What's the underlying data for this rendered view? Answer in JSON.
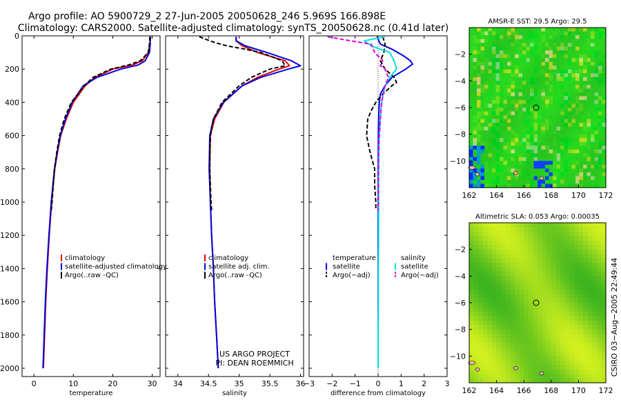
{
  "title": {
    "line1": "Argo profile: AO 5900729_2 27-Jun-2005 20050628_246 5.969S 166.898E",
    "line2": "Climatology: CARS2000. Satellite-adjusted climatology: synTS_20050628.nc (0.41d later)"
  },
  "colors": {
    "climatology": "#e00000",
    "satellite": "#0000e0",
    "argo": "#000000",
    "satellite_salinity": "#00e0e0",
    "argo_salinity": "#e000e0"
  },
  "depth_axis": {
    "ylim": [
      0,
      2050
    ],
    "ticks": [
      0,
      200,
      400,
      600,
      800,
      1000,
      1200,
      1400,
      1600,
      1800,
      2000
    ],
    "tick_labels": [
      "0",
      "200",
      "400",
      "600",
      "800",
      "1000",
      "1200",
      "1400",
      "1600",
      "1800",
      "2000"
    ]
  },
  "chart_data": [
    {
      "id": "temperature",
      "type": "line",
      "xlabel": "temperature",
      "xlim": [
        -3,
        32
      ],
      "xticks": [
        0,
        10,
        20,
        30
      ],
      "xtick_labels": [
        "0",
        "10",
        "20",
        "30"
      ],
      "legend": {
        "placement": "lower-center",
        "entries": [
          "climatology",
          "satellite-adjusted climatology",
          "Argo(..raw -QC)"
        ]
      },
      "series": [
        {
          "name": "climatology",
          "color": "climatology",
          "width": 2,
          "dash": "",
          "depth": [
            5,
            50,
            100,
            150,
            175,
            200,
            250,
            300,
            400,
            500,
            600,
            700,
            800,
            1000,
            1200,
            1400,
            1600,
            1800,
            2000
          ],
          "values": [
            29.6,
            29.4,
            29.0,
            27.5,
            25.0,
            20.0,
            15.5,
            13.0,
            10.0,
            8.2,
            6.8,
            6.0,
            5.3,
            4.5,
            3.9,
            3.4,
            3.0,
            2.7,
            2.4
          ]
        },
        {
          "name": "satellite-adjusted climatology",
          "color": "satellite",
          "width": 2,
          "dash": "",
          "depth": [
            5,
            50,
            100,
            150,
            175,
            200,
            250,
            300,
            400,
            500,
            600,
            700,
            800,
            1000,
            1200,
            1400,
            1600,
            1800,
            2000
          ],
          "values": [
            29.5,
            29.5,
            29.3,
            28.2,
            26.5,
            22.0,
            16.0,
            12.5,
            9.7,
            8.0,
            6.7,
            5.9,
            5.2,
            4.4,
            3.8,
            3.3,
            2.9,
            2.6,
            2.3
          ]
        },
        {
          "name": "Argo(..raw -QC)",
          "color": "argo",
          "width": 2,
          "dash": "6,3",
          "depth": [
            5,
            50,
            100,
            150,
            175,
            200,
            250,
            300,
            400,
            500,
            600,
            700,
            800,
            900,
            1000,
            1050
          ],
          "values": [
            29.4,
            29.3,
            29.0,
            27.0,
            24.0,
            19.5,
            15.0,
            12.8,
            9.5,
            7.7,
            6.5,
            5.8,
            5.2,
            4.9,
            4.6,
            4.4
          ]
        }
      ]
    },
    {
      "id": "salinity",
      "type": "line",
      "xlabel": "salinity",
      "xlim": [
        33.8,
        36.05
      ],
      "xticks": [
        34,
        34.5,
        35,
        35.5,
        36
      ],
      "xtick_labels": [
        "34",
        "34.5",
        "35",
        "35.5",
        "36"
      ],
      "legend": {
        "placement": "lower-center",
        "entries": [
          "climatology",
          "satellite adj. clim.",
          "Argo(..raw -QC)"
        ]
      },
      "credit": {
        "line1": "US ARGO PROJECT",
        "line2": "PI: DEAN ROEMMICH"
      },
      "series": [
        {
          "name": "climatology",
          "color": "climatology",
          "width": 2,
          "dash": "",
          "depth": [
            5,
            30,
            60,
            100,
            150,
            180,
            200,
            250,
            300,
            400,
            500,
            600,
            800,
            1000,
            1200,
            1400,
            1600,
            1800,
            2000
          ],
          "values": [
            34.95,
            34.95,
            35.05,
            35.3,
            35.75,
            35.82,
            35.65,
            35.3,
            35.05,
            34.75,
            34.6,
            34.53,
            34.52,
            34.53,
            34.55,
            34.58,
            34.6,
            34.63,
            34.66
          ]
        },
        {
          "name": "satellite adj. clim.",
          "color": "satellite",
          "width": 2,
          "dash": "",
          "depth": [
            5,
            30,
            60,
            100,
            150,
            180,
            200,
            250,
            300,
            400,
            500,
            600,
            800,
            1000,
            1200,
            1400,
            1600,
            1800,
            2000
          ],
          "values": [
            34.95,
            34.95,
            35.1,
            35.45,
            35.85,
            36.0,
            35.8,
            35.35,
            35.05,
            34.74,
            34.58,
            34.52,
            34.51,
            34.53,
            34.55,
            34.58,
            34.6,
            34.63,
            34.66
          ]
        },
        {
          "name": "Argo(..raw -QC)",
          "color": "argo",
          "width": 2,
          "dash": "6,3",
          "depth": [
            5,
            20,
            40,
            60,
            80,
            100,
            150,
            180,
            200,
            250,
            300,
            400,
            500,
            600,
            700,
            800,
            900,
            1000,
            1050
          ],
          "values": [
            34.35,
            34.45,
            34.6,
            34.8,
            35.1,
            35.35,
            35.7,
            35.75,
            35.5,
            35.2,
            35.0,
            34.72,
            34.58,
            34.53,
            34.52,
            34.52,
            34.53,
            34.54,
            34.55
          ]
        }
      ]
    },
    {
      "id": "difference",
      "type": "line",
      "xlabel": "difference from climatology",
      "xlim": [
        -3,
        3
      ],
      "xticks": [
        -3,
        -2,
        -1,
        0,
        1,
        2,
        3
      ],
      "xtick_labels": [
        "−3",
        "−2",
        "−1",
        "0",
        "1",
        "2",
        "3"
      ],
      "legend": {
        "placement": "lower-center",
        "left_title": "temperature",
        "right_title": "salinity",
        "left_entries": [
          "satellite",
          "Argo(−adj)"
        ],
        "right_entries": [
          "satellite",
          "Argo(−adj)"
        ]
      },
      "series": [
        {
          "name": "temperature satellite",
          "color": "satellite",
          "width": 2,
          "dash": "",
          "depth": [
            5,
            50,
            80,
            120,
            150,
            170,
            200,
            250,
            300,
            350,
            400,
            500,
            600,
            800,
            1000,
            1200,
            1400,
            1600,
            1800,
            2000
          ],
          "values": [
            -0.05,
            0.1,
            0.6,
            1.1,
            1.4,
            1.5,
            1.2,
            0.6,
            0.3,
            0.1,
            0.05,
            0.02,
            0.01,
            0.0,
            0.0,
            0.0,
            0.0,
            0.0,
            0.0,
            0.0
          ]
        },
        {
          "name": "temperature Argo(-adj)",
          "color": "argo",
          "width": 2,
          "dash": "6,3",
          "depth": [
            5,
            50,
            100,
            150,
            200,
            250,
            280,
            300,
            350,
            400,
            450,
            500,
            600,
            700,
            800,
            900,
            1000,
            1050
          ],
          "values": [
            0.2,
            0.3,
            0.25,
            0.1,
            0.3,
            0.7,
            0.8,
            0.6,
            0.2,
            -0.1,
            -0.3,
            -0.45,
            -0.5,
            -0.35,
            -0.15,
            -0.15,
            -0.1,
            -0.1
          ]
        },
        {
          "name": "salinity satellite",
          "color": "satellite_salinity",
          "width": 2,
          "dash": "",
          "depth": [
            5,
            30,
            60,
            100,
            150,
            200,
            250,
            300,
            400,
            500,
            600,
            800,
            1000,
            1200,
            1400,
            1600,
            1800,
            2000
          ],
          "values": [
            0.3,
            -0.6,
            -0.3,
            0.5,
            0.7,
            0.8,
            0.5,
            0.3,
            0.15,
            0.1,
            0.05,
            0.02,
            0.02,
            0.02,
            0.01,
            0.01,
            0.0,
            0.0
          ]
        },
        {
          "name": "salinity Argo(-adj)",
          "color": "argo_salinity",
          "width": 2,
          "dash": "6,3",
          "depth": [
            5,
            25,
            50,
            100,
            150,
            180,
            200,
            250,
            300,
            400,
            500,
            600,
            700,
            800,
            900,
            1000,
            1050
          ],
          "values": [
            -2.2,
            -1.4,
            -0.3,
            -0.15,
            0.2,
            0.1,
            0.3,
            0.45,
            0.3,
            0.15,
            0.1,
            0.05,
            0.02,
            0.02,
            0.01,
            0.01,
            0.01
          ]
        }
      ]
    }
  ],
  "maps": [
    {
      "id": "sst",
      "title": "AMSR-E SST: 29.5 Argo: 29.5",
      "type": "heatmap",
      "xlim": [
        162,
        172
      ],
      "ylim": [
        -12,
        0
      ],
      "xticks": [
        162,
        164,
        166,
        168,
        170,
        172
      ],
      "yticks": [
        -2,
        -4,
        -6,
        -8,
        -10
      ],
      "xtick_labels": [
        "162",
        "164",
        "166",
        "168",
        "170",
        "172"
      ],
      "ytick_labels": [
        "−2",
        "−4",
        "−6",
        "−8",
        "−10"
      ],
      "marker": {
        "lon": 166.9,
        "lat": -6.0
      }
    },
    {
      "id": "sla",
      "title": "Altimetric SLA: 0.053 Argo: 0.00035",
      "type": "heatmap",
      "xlim": [
        162,
        172
      ],
      "ylim": [
        -12,
        0
      ],
      "xticks": [
        162,
        164,
        166,
        168,
        170,
        172
      ],
      "yticks": [
        -2,
        -4,
        -6,
        -8,
        -10
      ],
      "xtick_labels": [
        "162",
        "164",
        "166",
        "168",
        "170",
        "172"
      ],
      "ytick_labels": [
        "−2",
        "−4",
        "−6",
        "−8",
        "−10"
      ],
      "marker": {
        "lon": 166.9,
        "lat": -6.0
      }
    }
  ],
  "side_stamp": "CSIRO 03−Aug−2005 22:49:44"
}
